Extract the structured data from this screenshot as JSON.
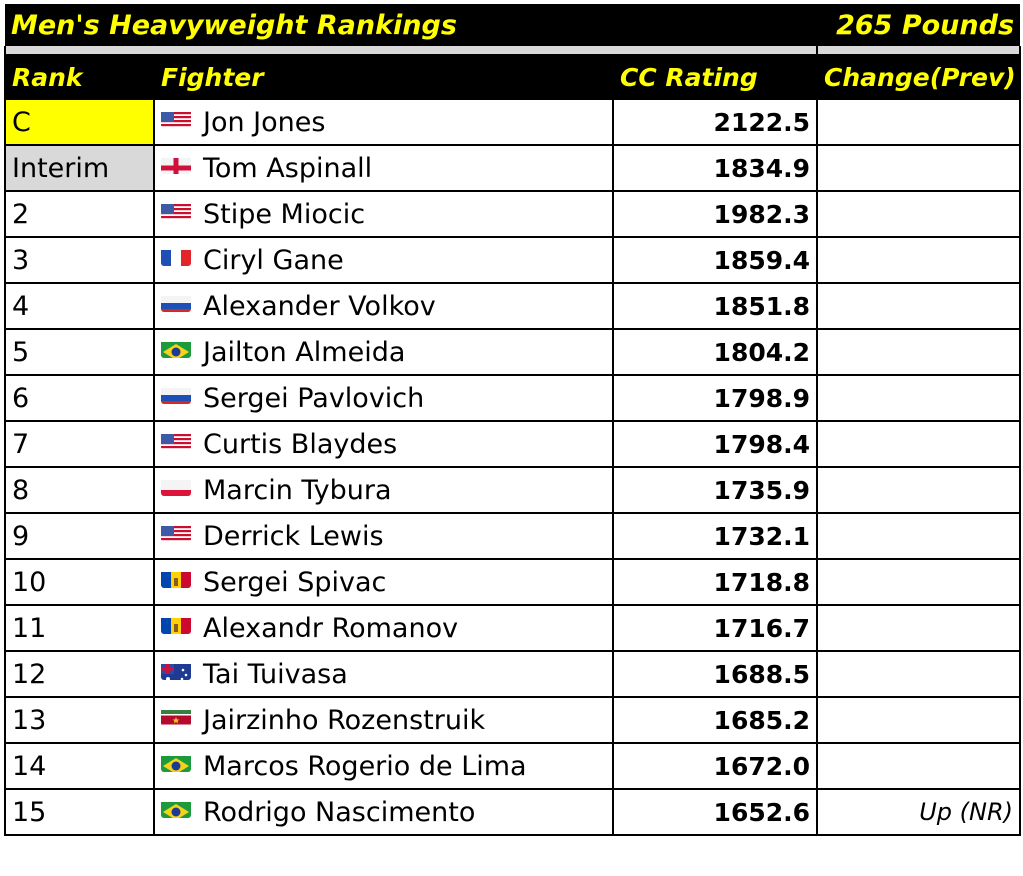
{
  "title": "Men's Heavyweight Rankings",
  "weight": "265 Pounds",
  "headers": {
    "rank": "Rank",
    "fighter": "Fighter",
    "rating": "CC Rating",
    "change": "Change(Prev)"
  },
  "colors": {
    "header_bg": "#000000",
    "header_text": "#ffff00",
    "champion_bg": "#ffff00",
    "interim_bg": "#d9d9d9"
  },
  "rows": [
    {
      "rank": "C",
      "flag": "us",
      "fighter": "Jon Jones",
      "rating": "2122.5",
      "change": ""
    },
    {
      "rank": "Interim",
      "flag": "eng",
      "fighter": "Tom Aspinall",
      "rating": "1834.9",
      "change": ""
    },
    {
      "rank": "2",
      "flag": "us",
      "fighter": "Stipe Miocic",
      "rating": "1982.3",
      "change": ""
    },
    {
      "rank": "3",
      "flag": "fr",
      "fighter": "Ciryl Gane",
      "rating": "1859.4",
      "change": ""
    },
    {
      "rank": "4",
      "flag": "ru",
      "fighter": "Alexander Volkov",
      "rating": "1851.8",
      "change": ""
    },
    {
      "rank": "5",
      "flag": "br",
      "fighter": "Jailton Almeida",
      "rating": "1804.2",
      "change": ""
    },
    {
      "rank": "6",
      "flag": "ru",
      "fighter": "Sergei Pavlovich",
      "rating": "1798.9",
      "change": ""
    },
    {
      "rank": "7",
      "flag": "us",
      "fighter": "Curtis Blaydes",
      "rating": "1798.4",
      "change": ""
    },
    {
      "rank": "8",
      "flag": "pl",
      "fighter": "Marcin Tybura",
      "rating": "1735.9",
      "change": ""
    },
    {
      "rank": "9",
      "flag": "us",
      "fighter": "Derrick Lewis",
      "rating": "1732.1",
      "change": ""
    },
    {
      "rank": "10",
      "flag": "md",
      "fighter": "Sergei Spivac",
      "rating": "1718.8",
      "change": ""
    },
    {
      "rank": "11",
      "flag": "md",
      "fighter": "Alexandr Romanov",
      "rating": "1716.7",
      "change": ""
    },
    {
      "rank": "12",
      "flag": "au",
      "fighter": "Tai Tuivasa",
      "rating": "1688.5",
      "change": ""
    },
    {
      "rank": "13",
      "flag": "sr",
      "fighter": "Jairzinho Rozenstruik",
      "rating": "1685.2",
      "change": ""
    },
    {
      "rank": "14",
      "flag": "br",
      "fighter": "Marcos Rogerio de Lima",
      "rating": "1672.0",
      "change": ""
    },
    {
      "rank": "15",
      "flag": "br",
      "fighter": "Rodrigo Nascimento",
      "rating": "1652.6",
      "change": "Up (NR)"
    }
  ]
}
